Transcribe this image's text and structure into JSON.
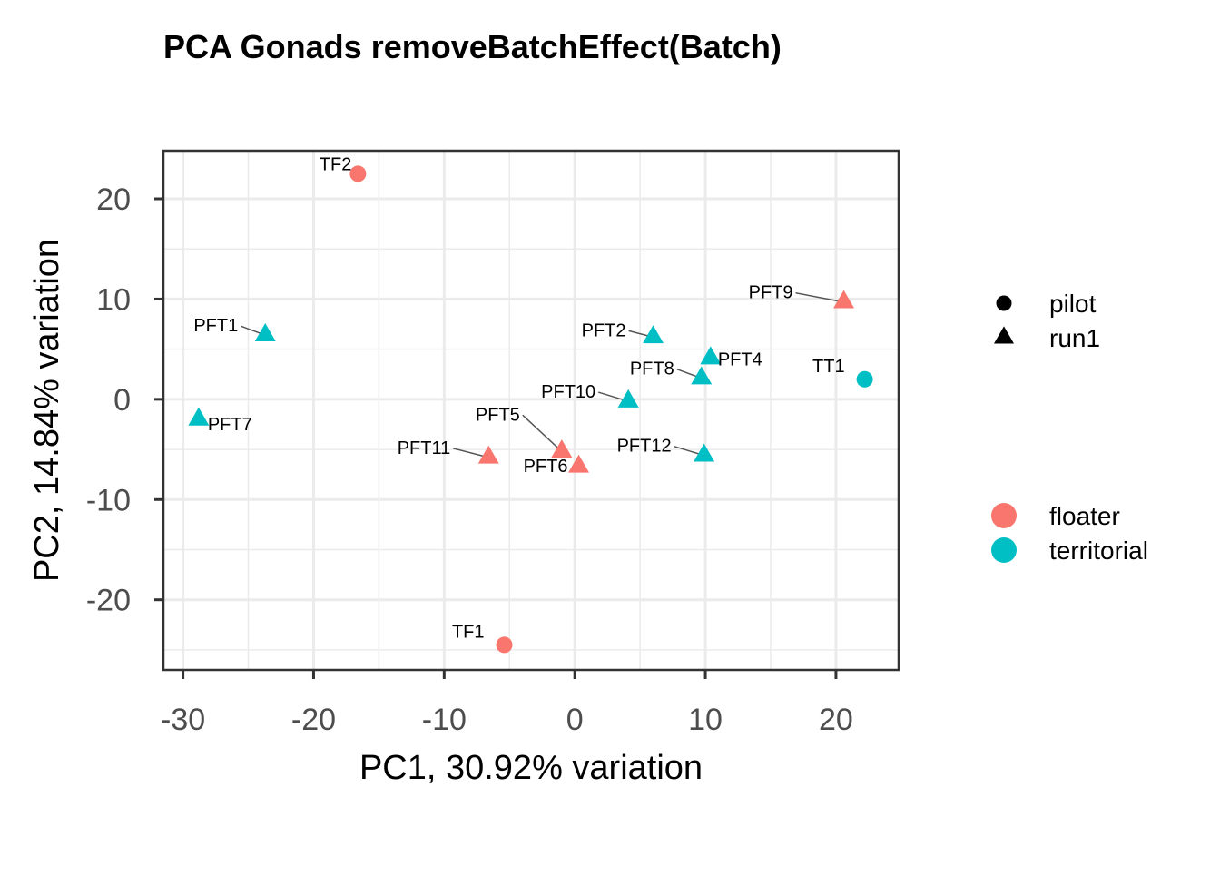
{
  "chart_data": {
    "type": "scatter",
    "title": "PCA Gonads removeBatchEffect(Batch)",
    "xlabel": "PC1, 30.92% variation",
    "ylabel": "PC2, 14.84% variation",
    "xlim": [
      -31.5,
      24.8
    ],
    "ylim": [
      -27.0,
      24.8
    ],
    "x_ticks": [
      -30,
      -20,
      -10,
      0,
      10,
      20
    ],
    "y_ticks": [
      20,
      10,
      0,
      -10,
      -20
    ],
    "grid": true,
    "legend_position": "right",
    "shape_legend": [
      {
        "label": "pilot",
        "shape": "circle"
      },
      {
        "label": "run1",
        "shape": "triangle"
      }
    ],
    "color_legend": [
      {
        "label": "floater",
        "color": "#F8766D"
      },
      {
        "label": "territorial",
        "color": "#00BFC4"
      }
    ],
    "points": [
      {
        "label": "TF2",
        "x": -16.6,
        "y": 22.5,
        "batch": "pilot",
        "group": "floater"
      },
      {
        "label": "TF1",
        "x": -5.4,
        "y": -24.5,
        "batch": "pilot",
        "group": "floater"
      },
      {
        "label": "TT1",
        "x": 22.2,
        "y": 2.0,
        "batch": "pilot",
        "group": "territorial"
      },
      {
        "label": "PFT1",
        "x": -23.7,
        "y": 6.4,
        "batch": "run1",
        "group": "territorial"
      },
      {
        "label": "PFT7",
        "x": -28.8,
        "y": -2.0,
        "batch": "run1",
        "group": "territorial"
      },
      {
        "label": "PFT2",
        "x": 6.0,
        "y": 6.2,
        "batch": "run1",
        "group": "territorial"
      },
      {
        "label": "PFT4",
        "x": 10.4,
        "y": 4.1,
        "batch": "run1",
        "group": "territorial"
      },
      {
        "label": "PFT8",
        "x": 9.7,
        "y": 2.1,
        "batch": "run1",
        "group": "territorial"
      },
      {
        "label": "PFT10",
        "x": 4.1,
        "y": -0.2,
        "batch": "run1",
        "group": "territorial"
      },
      {
        "label": "PFT12",
        "x": 9.9,
        "y": -5.6,
        "batch": "run1",
        "group": "territorial"
      },
      {
        "label": "PFT9",
        "x": 20.6,
        "y": 9.7,
        "batch": "run1",
        "group": "floater"
      },
      {
        "label": "PFT5",
        "x": -1.0,
        "y": -5.2,
        "batch": "run1",
        "group": "floater"
      },
      {
        "label": "PFT11",
        "x": -6.6,
        "y": -5.8,
        "batch": "run1",
        "group": "floater"
      },
      {
        "label": "PFT6",
        "x": 0.3,
        "y": -6.7,
        "batch": "run1",
        "group": "floater"
      }
    ]
  }
}
